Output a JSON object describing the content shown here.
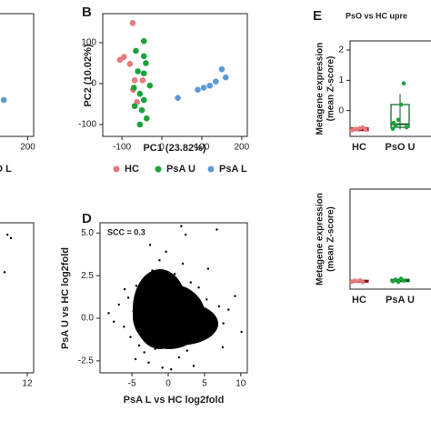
{
  "chart_data": [
    {
      "type": "scatter",
      "xlim": [
        -148,
        214
      ],
      "ylim": [
        -129,
        171
      ],
      "xticks": [
        200
      ],
      "series": [
        {
          "name": "PsO L",
          "color": "#5b9bd5",
          "x": [
            143
          ],
          "y": [
            -40
          ]
        }
      ]
    },
    {
      "type": "scatter",
      "panel": "B",
      "xlabel": "PC1 (23.82%)",
      "ylabel": "PC2 (10.02%)",
      "xlim": [
        -148,
        214
      ],
      "ylim": [
        -129,
        171
      ],
      "xticks": [
        -100,
        0,
        100,
        200
      ],
      "yticks": [
        -100,
        0,
        100
      ],
      "series": [
        {
          "name": "HC",
          "color": "#e8797a",
          "x": [
            -73,
            -105,
            -95,
            -80,
            -68,
            -72,
            -48,
            -62
          ],
          "y": [
            148,
            58,
            65,
            48,
            8,
            -15,
            8,
            -45
          ]
        },
        {
          "name": "PsA U",
          "color": "#1aa33a",
          "x": [
            -45,
            -45,
            -65,
            -40,
            -60,
            -45,
            -70,
            -55,
            -45,
            -68,
            -50,
            -38,
            -55,
            -30
          ],
          "y": [
            104,
            67,
            80,
            50,
            30,
            25,
            -10,
            -25,
            -40,
            -55,
            -65,
            -85,
            -100,
            -5
          ]
        },
        {
          "name": "PsA L",
          "color": "#5b9bd5",
          "x": [
            40,
            90,
            105,
            120,
            135,
            150,
            160
          ],
          "y": [
            -35,
            -15,
            -10,
            -5,
            5,
            35,
            15
          ]
        }
      ]
    },
    {
      "type": "scatter",
      "panel": "D",
      "annotation": "SCC = 0.3",
      "xlabel": "PsA L vs HC log2fold",
      "ylabel": "PsA U vs HC log2fold",
      "xlim": [
        -9.4,
        10.9
      ],
      "ylim": [
        -3.2,
        5.6
      ],
      "xticks": [
        -5,
        0,
        5,
        10
      ],
      "yticks": [
        {
          "value": -2.5,
          "label": "-2.5"
        },
        {
          "value": 0,
          "label": "0.0"
        },
        2.5,
        {
          "value": 5,
          "label": "5.0"
        }
      ],
      "series": [
        {
          "color": "#000000",
          "x": [
            -8.2,
            -7.5,
            -6.8,
            -6.1,
            -5.5,
            -5.2,
            -4.8,
            -4.4,
            -4,
            -3.6,
            -3.3,
            -3,
            -2.7,
            -2.2,
            -1.8,
            -1.2,
            -0.8,
            -0.3,
            0.4,
            0.9,
            1.5,
            2,
            2.6,
            3.1,
            3.7,
            4.2,
            4.8,
            5.3,
            5.9,
            6.4,
            7,
            7.6,
            8.3,
            9.2,
            10.1,
            6.7,
            -2.5,
            1.8,
            3.5,
            -4.5,
            2.4,
            0.2,
            -1,
            4.5,
            5.5,
            7.5,
            -3.8,
            -6,
            3,
            -0.5
          ],
          "y": [
            0.3,
            -0.2,
            0.8,
            -0.5,
            1.2,
            -1.1,
            0.4,
            1.9,
            -1.6,
            2.2,
            -2,
            1.5,
            -2.6,
            2.8,
            -1.8,
            3.4,
            -2.9,
            3.9,
            -3,
            2.6,
            -2.3,
            3.2,
            -1.9,
            2.1,
            -1.4,
            1.8,
            -0.9,
            1.1,
            0.2,
            -0.6,
            0.7,
            -0.3,
            0.5,
            1.3,
            -0.8,
            5.2,
            4.3,
            5.4,
            -2.8,
            -2.4,
            4.9,
            -1.5,
            2.1,
            0.6,
            2.9,
            -1.7,
            0.9,
            1.7,
            -0.4,
            1.1
          ]
        }
      ]
    },
    {
      "type": "scatter",
      "xlim": [
        -8.5,
        12.9
      ],
      "ylim": [
        -3.2,
        5.6
      ],
      "xticks": [
        12
      ],
      "series": [
        {
          "color": "#000000",
          "x": [
            9.2,
            9.7,
            8.8
          ],
          "y": [
            4.9,
            4.7,
            2.7
          ]
        }
      ]
    },
    {
      "type": "box",
      "panel": "E",
      "title": "PsO vs HC upre",
      "ylabel": [
        "Metagene expression",
        "(mean Z-score)"
      ],
      "ylim": [
        -0.85,
        2.3
      ],
      "yticks": [
        0,
        1,
        2
      ],
      "categories": [
        "HC",
        "PsO U"
      ],
      "boxes": [
        {
          "color": "#e8797a",
          "line": "#8b1a1a",
          "points": [
            -0.65,
            -0.6,
            -0.62,
            -0.58,
            -0.55,
            -0.63
          ],
          "whisker_low": -0.68,
          "q1": -0.66,
          "median": -0.62,
          "q3": -0.57,
          "whisker_high": -0.52
        },
        {
          "color": "#1aa33a",
          "line": "#0b5e1e",
          "points": [
            -0.6,
            -0.5,
            -0.3,
            0.2,
            0.9,
            -0.55,
            -0.4
          ],
          "whisker_low": -0.62,
          "q1": -0.55,
          "median": -0.45,
          "q3": 0.2,
          "whisker_high": 0.55
        }
      ]
    },
    {
      "type": "box",
      "ylabel": [
        "Metagene expression",
        "(mean Z-score)"
      ],
      "ylim": [
        -0.85,
        2.3
      ],
      "categories": [
        "HC",
        "PsA U"
      ],
      "boxes": [
        {
          "color": "#e8797a",
          "line": "#8b1a1a",
          "points": [
            -0.62,
            -0.58,
            -0.6,
            -0.57,
            -0.63
          ],
          "whisker_low": -0.65,
          "q1": -0.63,
          "median": -0.6,
          "q3": -0.57,
          "whisker_high": -0.55
        },
        {
          "color": "#1aa33a",
          "line": "#0b5e1e",
          "points": [
            -0.6,
            -0.55,
            -0.62,
            -0.52,
            -0.58
          ],
          "whisker_low": -0.64,
          "q1": -0.61,
          "median": -0.58,
          "q3": -0.54,
          "whisker_high": -0.5
        }
      ]
    }
  ]
}
